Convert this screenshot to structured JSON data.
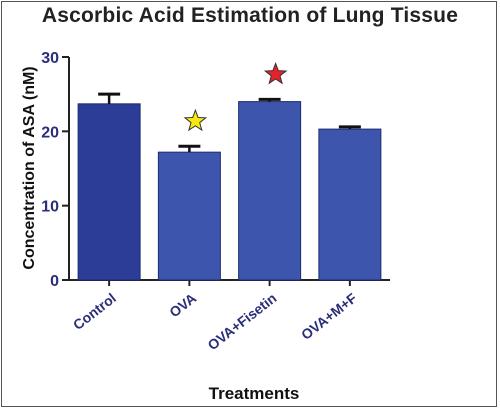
{
  "chart_data": {
    "type": "bar",
    "title": "Ascorbic Acid Estimation of Lung  Tissue",
    "xlabel": "Treatments",
    "ylabel": "Concentration of ASA (nM)",
    "categories": [
      "Control",
      "OVA",
      "OVA+Fisetin",
      "OVA+M+F"
    ],
    "values": [
      23.7,
      17.2,
      24.0,
      20.3
    ],
    "errors": [
      1.3,
      0.8,
      0.3,
      0.3
    ],
    "ylim": [
      0,
      30
    ],
    "yticks": [
      0,
      10,
      20,
      30
    ],
    "grid": false,
    "significance_markers": [
      {
        "category": "OVA",
        "symbol": "star",
        "color": "#f5e90f"
      },
      {
        "category": "OVA+Fisetin",
        "symbol": "star",
        "color": "#e8202a"
      }
    ],
    "colors": {
      "bars": [
        "#2b3d96",
        "#3d55ad",
        "#3d55ad",
        "#3d55ad"
      ],
      "tick_labels": "#2a2e7a",
      "axis": "#222222"
    }
  }
}
